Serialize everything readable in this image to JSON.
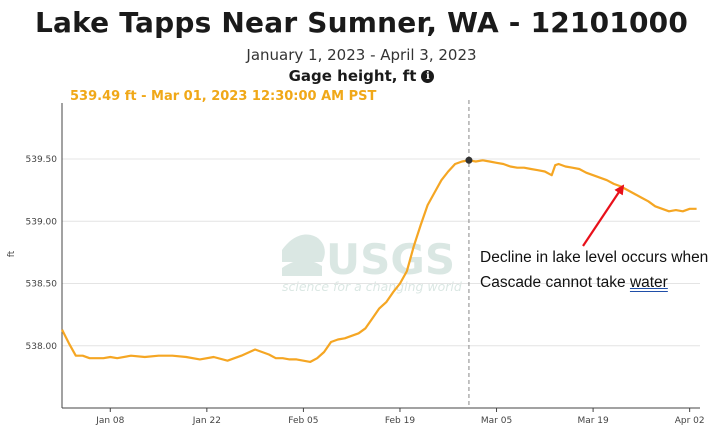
{
  "header": {
    "title": "Lake Tapps Near Sumner, WA - 12101000",
    "subtitle": "January 1, 2023 - April 3, 2023",
    "parameter": "Gage height, ft",
    "info_icon": "info-icon"
  },
  "tooltip": {
    "text": "539.49 ft - Mar 01, 2023 12:30:00 AM PST",
    "color": "#f0a818"
  },
  "watermark": {
    "logo": "USGS",
    "tagline": "science for a changing world"
  },
  "annotation": {
    "line1": "Decline in lake level occurs when",
    "line2_prefix": "Cascade cannot take ",
    "line2_underlined": "water",
    "arrow_color": "#e8101a"
  },
  "chart_data": {
    "type": "line",
    "title": "Lake Tapps Near Sumner, WA - 12101000",
    "ylabel": "ft",
    "ylim": [
      537.5,
      539.95
    ],
    "y_ticks": [
      "538.00",
      "538.50",
      "539.00",
      "539.50"
    ],
    "x_ticks": [
      {
        "label": "Jan 08",
        "day": 7
      },
      {
        "label": "Jan 22",
        "day": 21
      },
      {
        "label": "Feb 05",
        "day": 35
      },
      {
        "label": "Feb 19",
        "day": 49
      },
      {
        "label": "Mar 05",
        "day": 63
      },
      {
        "label": "Mar 19",
        "day": 77
      },
      {
        "label": "Apr 02",
        "day": 91
      }
    ],
    "xlim_days": [
      0,
      92.5
    ],
    "line_color": "#f5a623",
    "grid": true,
    "highlight": {
      "day": 59,
      "value": 539.49
    },
    "series": [
      {
        "name": "",
        "x": [
          0,
          1,
          2,
          3,
          4,
          5,
          6,
          7,
          8,
          10,
          12,
          14,
          16,
          18,
          20,
          22,
          24,
          26,
          28,
          29,
          30,
          31,
          32,
          33,
          34,
          35,
          36,
          37,
          38,
          39,
          40,
          41,
          42,
          43,
          44,
          45,
          46,
          47,
          48,
          49,
          50,
          51,
          52,
          53,
          54,
          55,
          56,
          57,
          58,
          59,
          60,
          61,
          62,
          63,
          64,
          65,
          66,
          67,
          68,
          69,
          70,
          71,
          71.5,
          72,
          73,
          74,
          75,
          76,
          77,
          78,
          79,
          80,
          81,
          82,
          83,
          84,
          85,
          86,
          87,
          88,
          89,
          90,
          91,
          92
        ],
        "values": [
          538.13,
          538.02,
          537.92,
          537.92,
          537.9,
          537.9,
          537.9,
          537.91,
          537.9,
          537.92,
          537.91,
          537.92,
          537.92,
          537.91,
          537.89,
          537.91,
          537.88,
          537.92,
          537.97,
          537.95,
          537.93,
          537.9,
          537.9,
          537.89,
          537.89,
          537.88,
          537.87,
          537.9,
          537.95,
          538.03,
          538.05,
          538.06,
          538.08,
          538.1,
          538.14,
          538.22,
          538.3,
          538.35,
          538.43,
          538.5,
          538.6,
          538.8,
          538.97,
          539.13,
          539.23,
          539.33,
          539.4,
          539.46,
          539.48,
          539.49,
          539.48,
          539.49,
          539.48,
          539.47,
          539.46,
          539.44,
          539.43,
          539.43,
          539.42,
          539.41,
          539.4,
          539.37,
          539.45,
          539.46,
          539.44,
          539.43,
          539.42,
          539.39,
          539.37,
          539.35,
          539.33,
          539.3,
          539.28,
          539.25,
          539.22,
          539.19,
          539.16,
          539.12,
          539.1,
          539.08,
          539.09,
          539.08,
          539.1,
          539.1
        ]
      }
    ]
  }
}
